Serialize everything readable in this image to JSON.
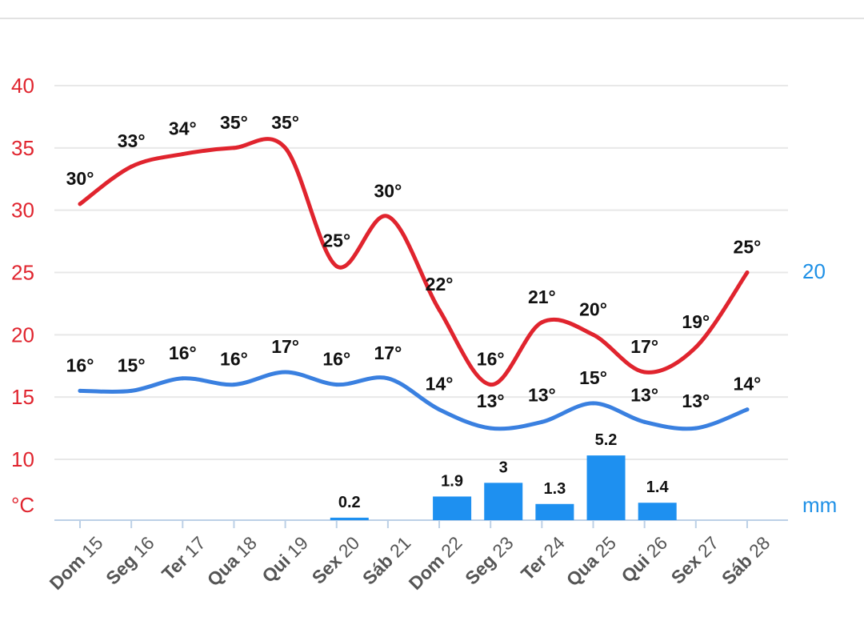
{
  "chart_data": {
    "type": "line",
    "categories": [
      "Dom 15",
      "Seg 16",
      "Ter 17",
      "Qua 18",
      "Qui 19",
      "Sex 20",
      "Sáb 21",
      "Dom 22",
      "Seg 23",
      "Ter 24",
      "Qua 25",
      "Qui 26",
      "Sex 27",
      "Sáb 28"
    ],
    "x_labels": [
      {
        "day": "Dom",
        "num": "15"
      },
      {
        "day": "Seg",
        "num": "16"
      },
      {
        "day": "Ter",
        "num": "17"
      },
      {
        "day": "Qua",
        "num": "18"
      },
      {
        "day": "Qui",
        "num": "19"
      },
      {
        "day": "Sex",
        "num": "20"
      },
      {
        "day": "Sáb",
        "num": "21"
      },
      {
        "day": "Dom",
        "num": "22"
      },
      {
        "day": "Seg",
        "num": "23"
      },
      {
        "day": "Ter",
        "num": "24"
      },
      {
        "day": "Qua",
        "num": "25"
      },
      {
        "day": "Qui",
        "num": "26"
      },
      {
        "day": "Sex",
        "num": "27"
      },
      {
        "day": "Sáb",
        "num": "28"
      }
    ],
    "series": [
      {
        "type": "line",
        "axis": "left",
        "color": "#e0242e",
        "values": [
          30.5,
          33.5,
          34.5,
          35,
          35,
          25.5,
          29.5,
          22,
          16,
          21,
          20,
          17,
          19,
          25
        ],
        "labels": [
          "30°",
          "33°",
          "34°",
          "35°",
          "35°",
          "25°",
          "30°",
          "22°",
          "16°",
          "21°",
          "20°",
          "17°",
          "19°",
          "25°"
        ]
      },
      {
        "type": "line",
        "axis": "left",
        "color": "#3a80e0",
        "values": [
          15.5,
          15.5,
          16.5,
          16,
          17,
          16,
          16.5,
          14,
          12.5,
          13,
          14.5,
          13,
          12.5,
          14
        ],
        "labels": [
          "16°",
          "15°",
          "16°",
          "16°",
          "17°",
          "16°",
          "17°",
          "14°",
          "13°",
          "13°",
          "15°",
          "13°",
          "13°",
          "14°"
        ]
      },
      {
        "type": "bar",
        "axis": "right",
        "color": "#1e90f0",
        "values": [
          0,
          0,
          0,
          0,
          0,
          0.2,
          0,
          1.9,
          3,
          1.3,
          5.2,
          1.4,
          0,
          0
        ],
        "labels": [
          "",
          "",
          "",
          "",
          "",
          "0.2",
          "",
          "1.9",
          "3",
          "1.3",
          "5.2",
          "1.4",
          "",
          ""
        ]
      }
    ],
    "y_left": {
      "ticks": [
        "40",
        "35",
        "30",
        "25",
        "20",
        "15",
        "10"
      ],
      "unit": "°C",
      "ylim": [
        5,
        40
      ]
    },
    "y_right": {
      "ticks": [
        "20"
      ],
      "unit": "mm",
      "ylim": [
        0,
        20
      ]
    },
    "grid": true,
    "colors": {
      "max_temp": "#e0242e",
      "min_temp": "#3a80e0",
      "precip": "#1e90f0",
      "right_axis_text": "#1e90e6"
    }
  }
}
